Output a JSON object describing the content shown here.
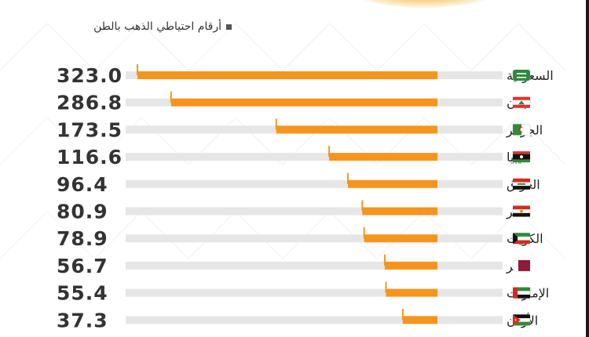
{
  "subtitle": "أرقام احتياطي الذهب بالطن",
  "chart_data": {
    "type": "bar",
    "orientation": "horizontal",
    "categories": [
      "السعودية",
      "لبنان",
      "الجزائر",
      "ليبيا",
      "العراق",
      "مصر",
      "الكويت",
      "قطر",
      "الإمارات",
      "الأردن"
    ],
    "values": [
      323.0,
      286.8,
      173.5,
      116.6,
      96.4,
      80.9,
      78.9,
      56.7,
      55.4,
      37.3
    ],
    "value_labels": [
      "323.0",
      "286.8",
      "173.5",
      "116.6",
      "96.4",
      "80.9",
      "78.9",
      "56.7",
      "55.4",
      "37.3"
    ],
    "flag_icons": [
      "saudi-arabia-flag-icon",
      "lebanon-flag-icon",
      "algeria-flag-icon",
      "libya-flag-icon",
      "iraq-flag-icon",
      "egypt-flag-icon",
      "kuwait-flag-icon",
      "qatar-flag-icon",
      "uae-flag-icon",
      "jordan-flag-icon"
    ],
    "bar_color": "#f7941d",
    "track_color": "#e6e6e6"
  }
}
